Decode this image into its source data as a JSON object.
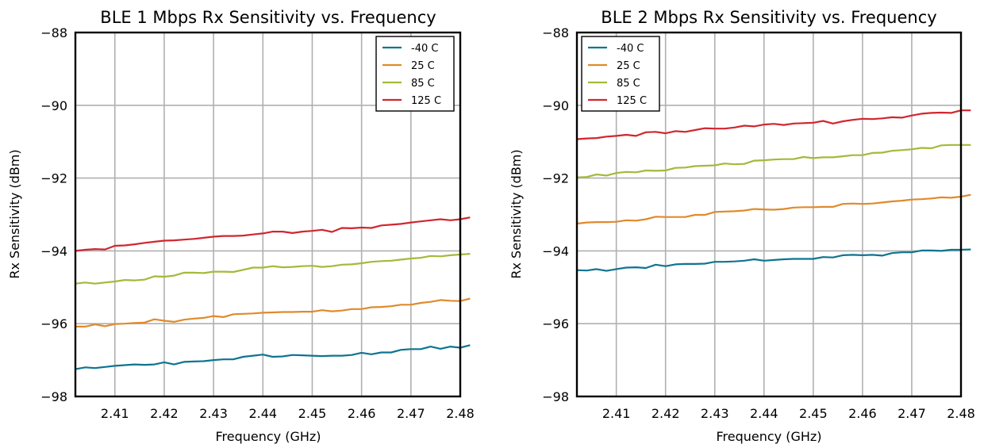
{
  "chart_data": [
    {
      "type": "line",
      "title": "BLE 1 Mbps Rx Sensitivity vs. Frequency",
      "xlabel": "Frequency (GHz)",
      "ylabel": "Rx Sensitivity (dBm)",
      "xlim": [
        2.402,
        2.48
      ],
      "ylim": [
        -98,
        -88
      ],
      "xticks": [
        2.41,
        2.42,
        2.43,
        2.44,
        2.45,
        2.46,
        2.47,
        2.48
      ],
      "xtick_labels": [
        "2.41",
        "2.42",
        "2.43",
        "2.44",
        "2.45",
        "2.46",
        "2.47",
        "2.48"
      ],
      "yticks": [
        -98,
        -96,
        -94,
        -92,
        -90,
        -88
      ],
      "ytick_labels": [
        "−98",
        "−96",
        "−94",
        "−92",
        "−90",
        "−88"
      ],
      "grid": true,
      "legend_position": "top-right",
      "x_start": 2.402,
      "x_step": 0.002,
      "series": [
        {
          "name": "-40 C",
          "color": "#0e7491",
          "values": [
            -97.25,
            -97.2,
            -97.22,
            -97.19,
            -97.16,
            -97.14,
            -97.12,
            -97.13,
            -97.12,
            -97.06,
            -97.12,
            -97.05,
            -97.04,
            -97.03,
            -97.0,
            -96.98,
            -96.98,
            -96.91,
            -96.88,
            -96.85,
            -96.91,
            -96.9,
            -96.86,
            -96.87,
            -96.88,
            -96.89,
            -96.88,
            -96.88,
            -96.86,
            -96.8,
            -96.84,
            -96.79,
            -96.79,
            -96.72,
            -96.7,
            -96.7,
            -96.63,
            -96.69,
            -96.63,
            -96.66,
            -96.59
          ]
        },
        {
          "name": "25 C",
          "color": "#e08a2c",
          "values": [
            -96.08,
            -96.08,
            -96.02,
            -96.07,
            -96.01,
            -96.0,
            -95.98,
            -95.97,
            -95.88,
            -95.92,
            -95.95,
            -95.89,
            -95.86,
            -95.84,
            -95.79,
            -95.82,
            -95.74,
            -95.73,
            -95.72,
            -95.7,
            -95.69,
            -95.68,
            -95.68,
            -95.67,
            -95.67,
            -95.63,
            -95.66,
            -95.64,
            -95.6,
            -95.6,
            -95.55,
            -95.54,
            -95.52,
            -95.48,
            -95.48,
            -95.43,
            -95.4,
            -95.35,
            -95.37,
            -95.38,
            -95.31
          ]
        },
        {
          "name": "85 C",
          "color": "#a3ba3b",
          "values": [
            -94.9,
            -94.87,
            -94.9,
            -94.87,
            -94.84,
            -94.8,
            -94.81,
            -94.79,
            -94.7,
            -94.71,
            -94.68,
            -94.6,
            -94.6,
            -94.61,
            -94.57,
            -94.57,
            -94.58,
            -94.52,
            -94.46,
            -94.46,
            -94.42,
            -94.45,
            -94.44,
            -94.42,
            -94.41,
            -94.44,
            -94.42,
            -94.38,
            -94.37,
            -94.34,
            -94.3,
            -94.28,
            -94.27,
            -94.24,
            -94.21,
            -94.19,
            -94.14,
            -94.15,
            -94.12,
            -94.1,
            -94.08
          ]
        },
        {
          "name": "125 C",
          "color": "#d1262f",
          "values": [
            -94.0,
            -93.97,
            -93.95,
            -93.96,
            -93.86,
            -93.85,
            -93.82,
            -93.78,
            -93.75,
            -93.72,
            -93.71,
            -93.69,
            -93.67,
            -93.64,
            -93.61,
            -93.59,
            -93.59,
            -93.58,
            -93.55,
            -93.52,
            -93.47,
            -93.47,
            -93.51,
            -93.47,
            -93.45,
            -93.42,
            -93.48,
            -93.37,
            -93.38,
            -93.36,
            -93.37,
            -93.3,
            -93.28,
            -93.26,
            -93.22,
            -93.19,
            -93.16,
            -93.13,
            -93.16,
            -93.13,
            -93.08
          ]
        }
      ]
    },
    {
      "type": "line",
      "title": "BLE 2 Mbps Rx Sensitivity vs. Frequency",
      "xlabel": "Frequency (GHz)",
      "ylabel": "Rx Sensitivity (dBm)",
      "xlim": [
        2.402,
        2.48
      ],
      "ylim": [
        -98,
        -88
      ],
      "xticks": [
        2.41,
        2.42,
        2.43,
        2.44,
        2.45,
        2.46,
        2.47,
        2.48
      ],
      "xtick_labels": [
        "2.41",
        "2.42",
        "2.43",
        "2.44",
        "2.45",
        "2.46",
        "2.47",
        "2.48"
      ],
      "yticks": [
        -98,
        -96,
        -94,
        -92,
        -90,
        -88
      ],
      "ytick_labels": [
        "−98",
        "−96",
        "−94",
        "−92",
        "−90",
        "−88"
      ],
      "grid": true,
      "legend_position": "top-left",
      "x_start": 2.402,
      "x_step": 0.002,
      "series": [
        {
          "name": "-40 C",
          "color": "#0e7491",
          "values": [
            -94.53,
            -94.54,
            -94.5,
            -94.55,
            -94.5,
            -94.46,
            -94.45,
            -94.47,
            -94.38,
            -94.42,
            -94.37,
            -94.36,
            -94.36,
            -94.35,
            -94.3,
            -94.3,
            -94.29,
            -94.27,
            -94.23,
            -94.27,
            -94.25,
            -94.23,
            -94.22,
            -94.22,
            -94.22,
            -94.17,
            -94.18,
            -94.12,
            -94.11,
            -94.12,
            -94.11,
            -94.13,
            -94.06,
            -94.04,
            -94.04,
            -93.99,
            -93.99,
            -94.0,
            -93.97,
            -93.97,
            -93.96
          ]
        },
        {
          "name": "25 C",
          "color": "#e08a2c",
          "values": [
            -93.25,
            -93.22,
            -93.21,
            -93.21,
            -93.2,
            -93.16,
            -93.17,
            -93.13,
            -93.06,
            -93.07,
            -93.07,
            -93.07,
            -93.01,
            -93.01,
            -92.93,
            -92.92,
            -92.91,
            -92.89,
            -92.85,
            -92.86,
            -92.87,
            -92.85,
            -92.81,
            -92.8,
            -92.8,
            -92.79,
            -92.79,
            -92.71,
            -92.7,
            -92.71,
            -92.7,
            -92.67,
            -92.64,
            -92.62,
            -92.59,
            -92.58,
            -92.56,
            -92.53,
            -92.54,
            -92.51,
            -92.46
          ]
        },
        {
          "name": "85 C",
          "color": "#a3ba3b",
          "values": [
            -91.98,
            -91.97,
            -91.9,
            -91.93,
            -91.86,
            -91.83,
            -91.84,
            -91.79,
            -91.8,
            -91.79,
            -91.72,
            -91.71,
            -91.67,
            -91.66,
            -91.65,
            -91.6,
            -91.62,
            -91.61,
            -91.52,
            -91.51,
            -91.49,
            -91.48,
            -91.48,
            -91.42,
            -91.45,
            -91.43,
            -91.43,
            -91.4,
            -91.37,
            -91.37,
            -91.31,
            -91.3,
            -91.25,
            -91.23,
            -91.21,
            -91.17,
            -91.18,
            -91.1,
            -91.09,
            -91.09,
            -91.09
          ]
        },
        {
          "name": "125 C",
          "color": "#d1262f",
          "values": [
            -90.93,
            -90.91,
            -90.9,
            -90.86,
            -90.84,
            -90.81,
            -90.84,
            -90.74,
            -90.73,
            -90.77,
            -90.71,
            -90.73,
            -90.68,
            -90.63,
            -90.64,
            -90.64,
            -90.61,
            -90.56,
            -90.58,
            -90.53,
            -90.51,
            -90.54,
            -90.5,
            -90.49,
            -90.48,
            -90.43,
            -90.5,
            -90.44,
            -90.4,
            -90.37,
            -90.38,
            -90.36,
            -90.33,
            -90.34,
            -90.28,
            -90.23,
            -90.21,
            -90.2,
            -90.21,
            -90.14,
            -90.14
          ]
        }
      ]
    }
  ]
}
